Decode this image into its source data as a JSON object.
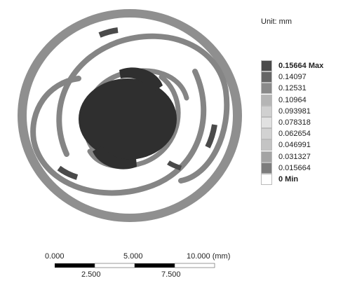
{
  "unit_label": "Unit: mm",
  "legend": {
    "entries": [
      {
        "label": "0.15664 Max",
        "bold": true,
        "color": "#4a4a4a"
      },
      {
        "label": "0.14097",
        "bold": false,
        "color": "#666666"
      },
      {
        "label": "0.12531",
        "bold": false,
        "color": "#8a8a8a"
      },
      {
        "label": "0.10964",
        "bold": false,
        "color": "#b5b5b5"
      },
      {
        "label": "0.093981",
        "bold": false,
        "color": "#d0d0d0"
      },
      {
        "label": "0.078318",
        "bold": false,
        "color": "#e1e1e1"
      },
      {
        "label": "0.062654",
        "bold": false,
        "color": "#d2d2d2"
      },
      {
        "label": "0.046991",
        "bold": false,
        "color": "#c4c4c4"
      },
      {
        "label": "0.031327",
        "bold": false,
        "color": "#a4a4a4"
      },
      {
        "label": "0.015664",
        "bold": false,
        "color": "#7d7d7d"
      },
      {
        "label": "0 Min",
        "bold": true,
        "color": "#ffffff"
      }
    ]
  },
  "scale_bar": {
    "top_labels": [
      "0.000",
      "5.000",
      "10.000 (mm)"
    ],
    "bottom_labels": [
      "2.500",
      "7.500"
    ]
  },
  "colors": {
    "outer_ring": "#8f8f8f",
    "spiral": "#858585",
    "hub": "#2f2f2f",
    "spiral_highlight": "#4a4a4a"
  }
}
